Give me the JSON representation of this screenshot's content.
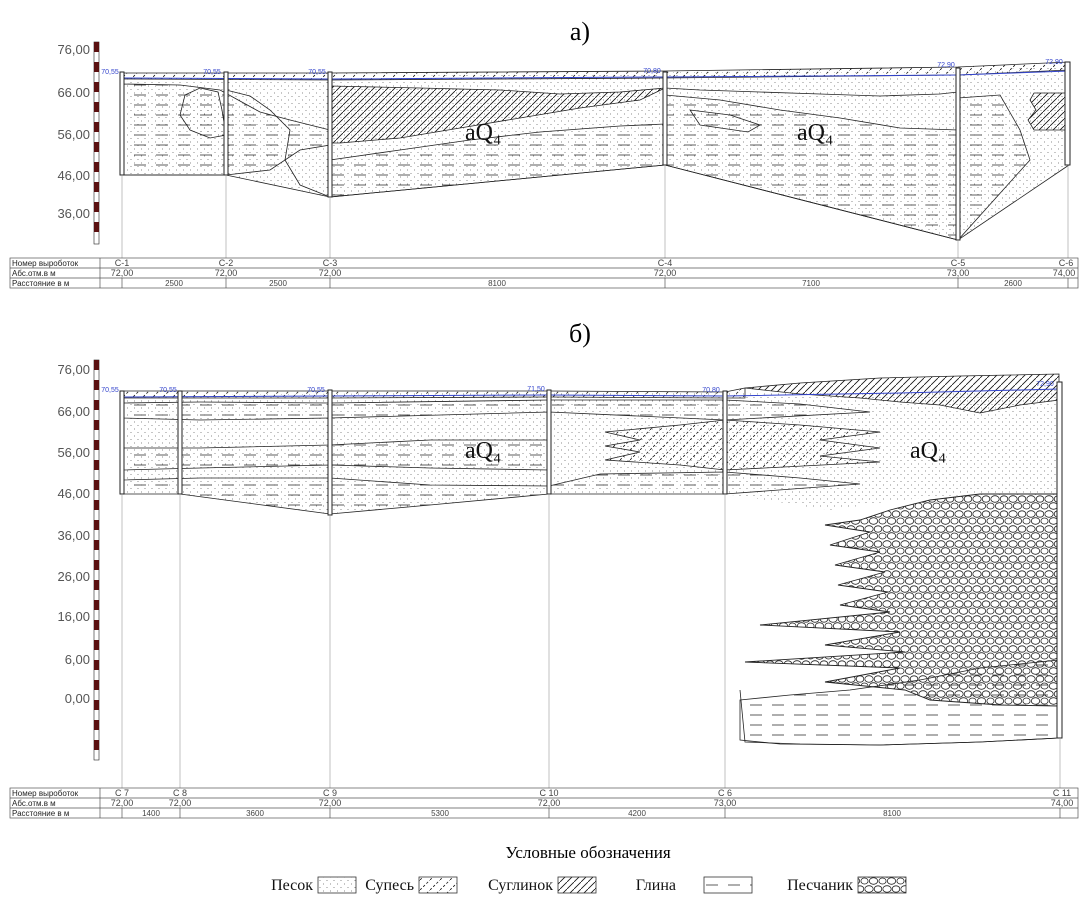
{
  "sections": {
    "a": {
      "title": "а)",
      "y_ticks": [
        "76,00",
        "66.00",
        "56,00",
        "46,00",
        "36,00"
      ],
      "geo_labels": [
        "aQ₄",
        "aQ₄"
      ],
      "well_top_labels": [
        "70,55",
        "70,55",
        "70,55",
        "70,80",
        "72,90",
        "72,90"
      ],
      "table": {
        "row_labels": [
          "Номер выроботок",
          "Абс.отм.в м",
          "Расстояние в м"
        ],
        "wells": [
          "С-1",
          "С-2",
          "С-3",
          "С-4",
          "С-5",
          "С-6"
        ],
        "elevations": [
          "72,00",
          "72,00",
          "72,00",
          "72,00",
          "73,00",
          "74,00"
        ],
        "distances": [
          "2500",
          "2500",
          "8100",
          "7100",
          "2600"
        ]
      }
    },
    "b": {
      "title": "б)",
      "y_ticks": [
        "76,00",
        "66,00",
        "56,00",
        "46,00",
        "36,00",
        "26,00",
        "16,00",
        "6,00",
        "0,00"
      ],
      "geo_labels": [
        "aQ₄",
        "aQ₄"
      ],
      "well_top_labels": [
        "70,55",
        "70,55",
        "70,55",
        "71,50",
        "70,80",
        "72,90"
      ],
      "table": {
        "row_labels": [
          "Номер выроботок",
          "Абс.отм.в м",
          "Расстояние в м"
        ],
        "wells": [
          "С 7",
          "С 8",
          "С 9",
          "С 10",
          "С 6",
          "С 11"
        ],
        "elevations": [
          "72,00",
          "72,00",
          "72,00",
          "72,00",
          "73,00",
          "74,00"
        ],
        "distances": [
          "1400",
          "3600",
          "5300",
          "4200",
          "8100"
        ]
      }
    }
  },
  "legend": {
    "title": "Условные обозначения",
    "items": [
      {
        "label": "Песок",
        "pattern": "sand"
      },
      {
        "label": "Супесь",
        "pattern": "sandy-loam"
      },
      {
        "label": "Суглинок",
        "pattern": "loam"
      },
      {
        "label": "Глина",
        "pattern": "clay"
      },
      {
        "label": "Песчаник",
        "pattern": "sandstone"
      }
    ]
  }
}
